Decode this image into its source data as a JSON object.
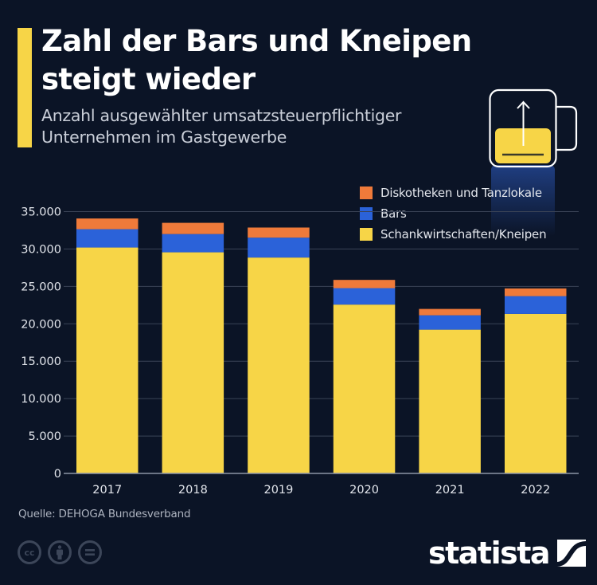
{
  "header": {
    "title": "Zahl der Bars und Kneipen steigt wieder",
    "subtitle": "Anzahl ausgewählter umsatzsteuerpflichtiger Unternehmen im Gastgewerbe"
  },
  "icons": {
    "header_illustration": "beer-mug-rising-arrow-icon",
    "license": [
      "creative-commons-icon",
      "attribution-person-icon",
      "no-derivatives-equals-icon"
    ],
    "brand": "statista-logo-icon"
  },
  "colors": {
    "background": "#0b1426",
    "accent": "#f7d547",
    "diskotheken": "#ef7a3a",
    "bars": "#2b62d9",
    "kneipen": "#f7d547",
    "grid": "#3a4356",
    "axis": "#8d95a5"
  },
  "footer": {
    "source": "Quelle: DEHOGA Bundesverband",
    "brand": "statista"
  },
  "chart_data": {
    "type": "bar",
    "stacked": true,
    "title": "Zahl der Bars und Kneipen steigt wieder",
    "subtitle": "Anzahl ausgewählter umsatzsteuerpflichtiger Unternehmen im Gastgewerbe",
    "xlabel": "",
    "ylabel": "",
    "categories": [
      "2017",
      "2018",
      "2019",
      "2020",
      "2021",
      "2022"
    ],
    "series": [
      {
        "name": "Schankwirtschaften/Kneipen",
        "color": "#f7d547",
        "values": [
          30200,
          29560,
          28860,
          22570,
          19220,
          21320
        ]
      },
      {
        "name": "Bars",
        "color": "#2b62d9",
        "values": [
          2450,
          2440,
          2660,
          2200,
          1920,
          2380
        ]
      },
      {
        "name": "Diskotheken und Tanzlokale",
        "color": "#ef7a3a",
        "values": [
          1430,
          1500,
          1350,
          1100,
          850,
          1030
        ]
      }
    ],
    "ylim": [
      0,
      35000
    ],
    "yticks": [
      0,
      5000,
      10000,
      15000,
      20000,
      25000,
      30000,
      35000
    ],
    "ytick_labels": [
      "0",
      "5.000",
      "10.000",
      "15.000",
      "20.000",
      "25.000",
      "30.000",
      "35.000"
    ],
    "grid": true,
    "legend": {
      "position": "top-right",
      "entries": [
        "Diskotheken und Tanzlokale",
        "Bars",
        "Schankwirtschaften/Kneipen"
      ]
    },
    "source": "Quelle: DEHOGA Bundesverband"
  }
}
